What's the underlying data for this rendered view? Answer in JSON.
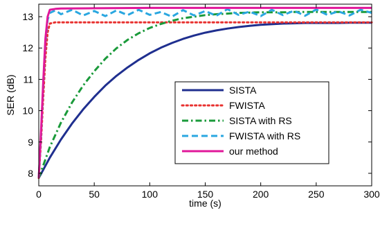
{
  "chart_data": {
    "type": "line",
    "title": "",
    "xlabel": "time (s)",
    "ylabel": "SER (dB)",
    "xlim": [
      0,
      300
    ],
    "ylim": [
      7.6,
      13.4
    ],
    "xticks": [
      0,
      50,
      100,
      150,
      200,
      250,
      300
    ],
    "yticks": [
      8,
      9,
      10,
      11,
      12,
      13
    ],
    "grid": false,
    "legend_position": "center-right",
    "series": [
      {
        "name": "SISTA",
        "color": "#1f2f8f",
        "style": "solid",
        "x": [
          0,
          10,
          20,
          30,
          40,
          50,
          60,
          70,
          80,
          90,
          100,
          110,
          120,
          130,
          140,
          150,
          160,
          170,
          180,
          190,
          200,
          210,
          220,
          230,
          240,
          250,
          260,
          270,
          280,
          290,
          300
        ],
        "y": [
          7.85,
          8.5,
          9.08,
          9.59,
          10.04,
          10.44,
          10.8,
          11.11,
          11.38,
          11.62,
          11.83,
          12.01,
          12.16,
          12.29,
          12.4,
          12.49,
          12.56,
          12.62,
          12.67,
          12.71,
          12.74,
          12.76,
          12.78,
          12.79,
          12.8,
          12.8,
          12.8,
          12.8,
          12.81,
          12.81,
          12.81
        ]
      },
      {
        "name": "FWISTA",
        "color": "#e8312f",
        "style": "dotted",
        "x": [
          0,
          2,
          4,
          6,
          8,
          10,
          15,
          50,
          100,
          150,
          200,
          250,
          300
        ],
        "y": [
          7.85,
          9.0,
          10.4,
          11.7,
          12.5,
          12.78,
          12.82,
          12.82,
          12.82,
          12.82,
          12.82,
          12.82,
          12.82
        ]
      },
      {
        "name": "SISTA with RS",
        "color": "#1a9a3a",
        "style": "dashdot",
        "x": [
          0,
          10,
          20,
          30,
          40,
          50,
          60,
          70,
          80,
          90,
          100,
          110,
          120,
          130,
          140,
          150,
          160,
          170,
          180,
          190,
          200,
          210,
          220,
          230,
          240,
          250,
          260,
          270,
          280,
          290,
          300
        ],
        "y": [
          7.85,
          8.84,
          9.62,
          10.26,
          10.8,
          11.26,
          11.66,
          11.99,
          12.26,
          12.47,
          12.64,
          12.77,
          12.87,
          12.95,
          13.0,
          13.05,
          13.08,
          13.1,
          13.12,
          13.13,
          13.14,
          13.14,
          13.14,
          13.15,
          13.15,
          13.15,
          13.15,
          13.15,
          13.15,
          13.15,
          13.15
        ]
      },
      {
        "name": "FWISTA with RS",
        "color": "#2aa7e0",
        "style": "dashed",
        "x": [
          0,
          2,
          4,
          6,
          8,
          10,
          15,
          20,
          30,
          40,
          50,
          60,
          70,
          80,
          90,
          100,
          110,
          120,
          130,
          140,
          150,
          160,
          170,
          180,
          190,
          200,
          210,
          220,
          230,
          240,
          250,
          260,
          270,
          280,
          290,
          300
        ],
        "y": [
          7.85,
          9.2,
          10.8,
          12.2,
          12.9,
          13.12,
          13.2,
          13.08,
          13.22,
          13.04,
          13.18,
          13.02,
          13.2,
          13.05,
          13.22,
          13.06,
          13.15,
          13.0,
          13.21,
          13.04,
          13.18,
          13.03,
          13.24,
          13.06,
          13.16,
          13.02,
          13.22,
          13.05,
          13.19,
          13.03,
          13.23,
          13.06,
          13.17,
          13.04,
          13.22,
          13.12
        ]
      },
      {
        "name": "our method",
        "color": "#e0189a",
        "style": "solid",
        "x": [
          0,
          2,
          4,
          6,
          8,
          10,
          15,
          20,
          50,
          100,
          150,
          200,
          250,
          300
        ],
        "y": [
          7.85,
          9.3,
          10.9,
          12.3,
          13.0,
          13.22,
          13.25,
          13.26,
          13.27,
          13.28,
          13.28,
          13.28,
          13.28,
          13.28
        ]
      }
    ]
  }
}
